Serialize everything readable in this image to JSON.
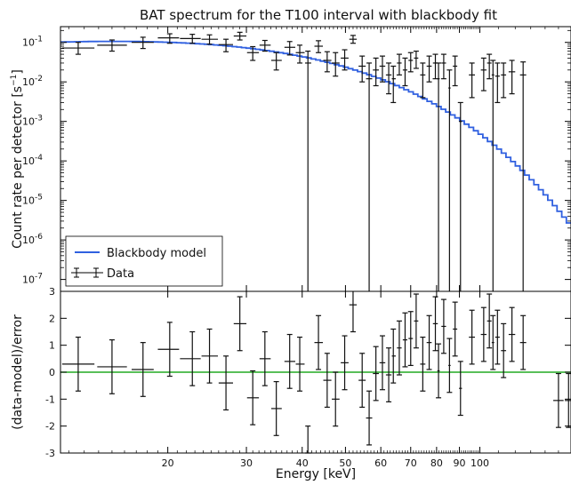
{
  "chart_data": {
    "type": "scatter",
    "title": "BAT spectrum for the T100 interval with blackbody fit",
    "xlabel": "Energy [keV]",
    "x_scale": "log",
    "xlim": [
      11.5,
      160
    ],
    "x_ticks": [
      {
        "value": 20,
        "label": "20"
      },
      {
        "value": 30,
        "label": "30"
      },
      {
        "value": 40,
        "label": "40"
      },
      {
        "value": 50,
        "label": "50"
      },
      {
        "value": 60,
        "label": "60"
      },
      {
        "value": 70,
        "label": "70"
      },
      {
        "value": 80,
        "label": "80"
      },
      {
        "value": 90,
        "label": "90"
      },
      {
        "value": 100,
        "label": "100"
      }
    ],
    "top_panel": {
      "ylabel": "Count rate per detector [s",
      "ylabel_sup": "−1",
      "ylabel_end": "]",
      "y_scale": "log",
      "ylim": [
        5e-08,
        0.25
      ],
      "y_ticks": [
        {
          "value": 1e-07,
          "base": "10",
          "exp": "-7"
        },
        {
          "value": 1e-06,
          "base": "10",
          "exp": "-6"
        },
        {
          "value": 1e-05,
          "base": "10",
          "exp": "-5"
        },
        {
          "value": 0.0001,
          "base": "10",
          "exp": "-4"
        },
        {
          "value": 0.001,
          "base": "10",
          "exp": "-3"
        },
        {
          "value": 0.01,
          "base": "10",
          "exp": "-2"
        },
        {
          "value": 0.1,
          "base": "10",
          "exp": "-1"
        }
      ],
      "legend": {
        "position": "bottom-left",
        "model_label": "Blackbody model",
        "data_label": "Data"
      },
      "model": {
        "name": "Blackbody model",
        "color": "#3060e0",
        "kT_keV": 9.5,
        "norm": 0.103
      },
      "data": [
        {
          "x": 12.6,
          "y": 0.072,
          "xlo": 11.6,
          "xhi": 13.7,
          "ylo": 0.05,
          "yhi": 0.1
        },
        {
          "x": 15.0,
          "y": 0.085,
          "xlo": 13.9,
          "xhi": 16.2,
          "ylo": 0.06,
          "yhi": 0.115
        },
        {
          "x": 17.6,
          "y": 0.1,
          "xlo": 16.6,
          "xhi": 18.6,
          "ylo": 0.07,
          "yhi": 0.135
        },
        {
          "x": 20.2,
          "y": 0.13,
          "xlo": 19.0,
          "xhi": 21.2,
          "ylo": 0.095,
          "yhi": 0.165
        },
        {
          "x": 22.7,
          "y": 0.125,
          "xlo": 21.3,
          "xhi": 23.7,
          "ylo": 0.095,
          "yhi": 0.16
        },
        {
          "x": 24.8,
          "y": 0.12,
          "xlo": 23.8,
          "xhi": 25.9,
          "ylo": 0.09,
          "yhi": 0.155
        },
        {
          "x": 27.0,
          "y": 0.088,
          "xlo": 26.0,
          "xhi": 28.0,
          "ylo": 0.058,
          "yhi": 0.12
        },
        {
          "x": 29.0,
          "y": 0.145,
          "xlo": 28.1,
          "xhi": 30.0,
          "ylo": 0.115,
          "yhi": 0.18
        },
        {
          "x": 31.0,
          "y": 0.055,
          "xlo": 30.1,
          "xhi": 32.0,
          "ylo": 0.035,
          "yhi": 0.078
        },
        {
          "x": 33.0,
          "y": 0.085,
          "xlo": 32.1,
          "xhi": 34.0,
          "ylo": 0.06,
          "yhi": 0.112
        },
        {
          "x": 35.0,
          "y": 0.035,
          "xlo": 34.1,
          "xhi": 36.0,
          "ylo": 0.02,
          "yhi": 0.055
        },
        {
          "x": 37.5,
          "y": 0.075,
          "xlo": 36.5,
          "xhi": 38.6,
          "ylo": 0.048,
          "yhi": 0.105
        },
        {
          "x": 39.5,
          "y": 0.055,
          "xlo": 38.7,
          "xhi": 40.5,
          "ylo": 0.03,
          "yhi": 0.085
        },
        {
          "x": 41.2,
          "y": 0.03,
          "xlo": 40.6,
          "xhi": 41.9,
          "ylo": 5e-08,
          "yhi": 0.06
        },
        {
          "x": 43.5,
          "y": 0.08,
          "xlo": 42.6,
          "xhi": 44.5,
          "ylo": 0.055,
          "yhi": 0.11
        },
        {
          "x": 45.5,
          "y": 0.035,
          "xlo": 44.6,
          "xhi": 46.5,
          "ylo": 0.018,
          "yhi": 0.058
        },
        {
          "x": 47.5,
          "y": 0.03,
          "xlo": 46.6,
          "xhi": 48.5,
          "ylo": 0.014,
          "yhi": 0.055
        },
        {
          "x": 49.8,
          "y": 0.04,
          "xlo": 48.8,
          "xhi": 50.8,
          "ylo": 0.02,
          "yhi": 0.065
        },
        {
          "x": 52.0,
          "y": 0.12,
          "xlo": 51.0,
          "xhi": 53.0,
          "ylo": 0.095,
          "yhi": 0.15
        },
        {
          "x": 54.5,
          "y": 0.025,
          "xlo": 53.5,
          "xhi": 55.5,
          "ylo": 0.01,
          "yhi": 0.045
        },
        {
          "x": 56.5,
          "y": 0.012,
          "xlo": 55.6,
          "xhi": 57.4,
          "ylo": 5e-08,
          "yhi": 0.03
        },
        {
          "x": 58.5,
          "y": 0.02,
          "xlo": 57.6,
          "xhi": 59.4,
          "ylo": 0.008,
          "yhi": 0.04
        },
        {
          "x": 60.5,
          "y": 0.025,
          "xlo": 59.6,
          "xhi": 61.4,
          "ylo": 0.01,
          "yhi": 0.045
        },
        {
          "x": 62.5,
          "y": 0.015,
          "xlo": 61.6,
          "xhi": 63.4,
          "ylo": 0.005,
          "yhi": 0.03
        },
        {
          "x": 64.0,
          "y": 0.012,
          "xlo": 63.5,
          "xhi": 64.8,
          "ylo": 0.003,
          "yhi": 0.025
        },
        {
          "x": 66.0,
          "y": 0.03,
          "xlo": 65.2,
          "xhi": 66.8,
          "ylo": 0.015,
          "yhi": 0.05
        },
        {
          "x": 68.0,
          "y": 0.02,
          "xlo": 67.2,
          "xhi": 68.8,
          "ylo": 0.008,
          "yhi": 0.04
        },
        {
          "x": 70.0,
          "y": 0.035,
          "xlo": 69.2,
          "xhi": 70.8,
          "ylo": 0.018,
          "yhi": 0.055
        },
        {
          "x": 72.0,
          "y": 0.04,
          "xlo": 71.2,
          "xhi": 72.8,
          "ylo": 0.022,
          "yhi": 0.06
        },
        {
          "x": 74.5,
          "y": 0.015,
          "xlo": 73.5,
          "xhi": 75.5,
          "ylo": 0.004,
          "yhi": 0.03
        },
        {
          "x": 77.0,
          "y": 0.025,
          "xlo": 76.0,
          "xhi": 78.0,
          "ylo": 0.01,
          "yhi": 0.045
        },
        {
          "x": 79.5,
          "y": 0.03,
          "xlo": 78.5,
          "xhi": 80.5,
          "ylo": 0.012,
          "yhi": 0.05
        },
        {
          "x": 80.8,
          "y": 0.012,
          "xlo": 80.3,
          "xhi": 81.3,
          "ylo": 5e-08,
          "yhi": 0.03
        },
        {
          "x": 83.0,
          "y": 0.03,
          "xlo": 82.0,
          "xhi": 84.0,
          "ylo": 0.012,
          "yhi": 0.05
        },
        {
          "x": 85.5,
          "y": 0.007,
          "xlo": 85.0,
          "xhi": 86.0,
          "ylo": 5e-08,
          "yhi": 0.02
        },
        {
          "x": 88.0,
          "y": 0.025,
          "xlo": 87.0,
          "xhi": 89.0,
          "ylo": 0.008,
          "yhi": 0.045
        },
        {
          "x": 90.5,
          "y": 0.001,
          "xlo": 89.8,
          "xhi": 91.2,
          "ylo": 5e-08,
          "yhi": 0.003
        },
        {
          "x": 96.0,
          "y": 0.015,
          "xlo": 94.5,
          "xhi": 97.5,
          "ylo": 0.004,
          "yhi": 0.03
        },
        {
          "x": 102.0,
          "y": 0.02,
          "xlo": 100.5,
          "xhi": 103.5,
          "ylo": 0.006,
          "yhi": 0.04
        },
        {
          "x": 105.0,
          "y": 0.03,
          "xlo": 103.8,
          "xhi": 106.2,
          "ylo": 0.012,
          "yhi": 0.05
        },
        {
          "x": 107.0,
          "y": 0.015,
          "xlo": 106.3,
          "xhi": 107.7,
          "ylo": 5e-08,
          "yhi": 0.035
        },
        {
          "x": 109.5,
          "y": 0.014,
          "xlo": 108.2,
          "xhi": 110.8,
          "ylo": 0.003,
          "yhi": 0.03
        },
        {
          "x": 113.0,
          "y": 0.015,
          "xlo": 111.5,
          "xhi": 114.5,
          "ylo": 0.004,
          "yhi": 0.03
        },
        {
          "x": 118.0,
          "y": 0.018,
          "xlo": 116.0,
          "xhi": 120.0,
          "ylo": 0.005,
          "yhi": 0.035
        },
        {
          "x": 125.0,
          "y": 0.015,
          "xlo": 123.0,
          "xhi": 127.0,
          "ylo": 5e-08,
          "yhi": 0.032
        }
      ]
    },
    "bottom_panel": {
      "ylabel": "(data-model)/error",
      "ylim": [
        -3,
        3
      ],
      "y_ticks": [
        -3,
        -2,
        -1,
        0,
        1,
        2,
        3
      ],
      "zero_line_color": "#22aa22",
      "data": [
        {
          "x": 12.6,
          "y": 0.3,
          "xlo": 11.6,
          "xhi": 13.7
        },
        {
          "x": 15.0,
          "y": 0.2,
          "xlo": 13.9,
          "xhi": 16.2
        },
        {
          "x": 17.6,
          "y": 0.1,
          "xlo": 16.6,
          "xhi": 18.6
        },
        {
          "x": 20.2,
          "y": 0.85,
          "xlo": 19.0,
          "xhi": 21.2
        },
        {
          "x": 22.7,
          "y": 0.5,
          "xlo": 21.3,
          "xhi": 23.7
        },
        {
          "x": 24.8,
          "y": 0.6,
          "xlo": 23.8,
          "xhi": 25.9
        },
        {
          "x": 27.0,
          "y": -0.4,
          "xlo": 26.0,
          "xhi": 28.0
        },
        {
          "x": 29.0,
          "y": 1.8,
          "xlo": 28.1,
          "xhi": 30.0
        },
        {
          "x": 31.0,
          "y": -0.95,
          "xlo": 30.1,
          "xhi": 32.0
        },
        {
          "x": 33.0,
          "y": 0.5,
          "xlo": 32.1,
          "xhi": 34.0
        },
        {
          "x": 35.0,
          "y": -1.35,
          "xlo": 34.1,
          "xhi": 36.0
        },
        {
          "x": 37.5,
          "y": 0.4,
          "xlo": 36.5,
          "xhi": 38.6
        },
        {
          "x": 39.5,
          "y": 0.3,
          "xlo": 38.7,
          "xhi": 40.5
        },
        {
          "x": 41.2,
          "y": -3.0,
          "xlo": 40.6,
          "xhi": 41.9
        },
        {
          "x": 43.5,
          "y": 1.1,
          "xlo": 42.6,
          "xhi": 44.5
        },
        {
          "x": 45.5,
          "y": -0.3,
          "xlo": 44.6,
          "xhi": 46.5
        },
        {
          "x": 47.5,
          "y": -1.0,
          "xlo": 46.6,
          "xhi": 48.5
        },
        {
          "x": 49.8,
          "y": 0.35,
          "xlo": 48.8,
          "xhi": 50.8
        },
        {
          "x": 52.0,
          "y": 2.5,
          "xlo": 51.0,
          "xhi": 53.0
        },
        {
          "x": 54.5,
          "y": -0.3,
          "xlo": 53.5,
          "xhi": 55.5
        },
        {
          "x": 56.5,
          "y": -1.7,
          "xlo": 55.6,
          "xhi": 57.4
        },
        {
          "x": 58.5,
          "y": -0.05,
          "xlo": 57.6,
          "xhi": 59.4
        },
        {
          "x": 60.5,
          "y": 0.35,
          "xlo": 59.6,
          "xhi": 61.4
        },
        {
          "x": 62.5,
          "y": -0.1,
          "xlo": 61.6,
          "xhi": 63.4
        },
        {
          "x": 64.0,
          "y": 0.6,
          "xlo": 63.5,
          "xhi": 64.8
        },
        {
          "x": 66.0,
          "y": 0.9,
          "xlo": 65.2,
          "xhi": 66.8
        },
        {
          "x": 68.0,
          "y": 1.2,
          "xlo": 67.2,
          "xhi": 68.8
        },
        {
          "x": 70.0,
          "y": 1.25,
          "xlo": 69.2,
          "xhi": 70.8
        },
        {
          "x": 72.0,
          "y": 1.9,
          "xlo": 71.2,
          "xhi": 72.8
        },
        {
          "x": 74.5,
          "y": 0.3,
          "xlo": 73.5,
          "xhi": 75.5
        },
        {
          "x": 77.0,
          "y": 1.1,
          "xlo": 76.0,
          "xhi": 78.0
        },
        {
          "x": 79.5,
          "y": 1.8,
          "xlo": 78.5,
          "xhi": 80.5
        },
        {
          "x": 80.8,
          "y": 0.05,
          "xlo": 80.3,
          "xhi": 81.3
        },
        {
          "x": 83.0,
          "y": 1.7,
          "xlo": 82.0,
          "xhi": 84.0
        },
        {
          "x": 85.5,
          "y": 0.25,
          "xlo": 85.0,
          "xhi": 86.0
        },
        {
          "x": 88.0,
          "y": 1.6,
          "xlo": 87.0,
          "xhi": 89.0
        },
        {
          "x": 90.5,
          "y": -0.6,
          "xlo": 89.8,
          "xhi": 91.2
        },
        {
          "x": 96.0,
          "y": 1.3,
          "xlo": 94.5,
          "xhi": 97.5
        },
        {
          "x": 102.0,
          "y": 1.4,
          "xlo": 100.5,
          "xhi": 103.5
        },
        {
          "x": 105.0,
          "y": 1.9,
          "xlo": 103.8,
          "xhi": 106.2
        },
        {
          "x": 107.0,
          "y": 1.1,
          "xlo": 106.3,
          "xhi": 107.7
        },
        {
          "x": 109.5,
          "y": 1.3,
          "xlo": 108.2,
          "xhi": 110.8
        },
        {
          "x": 113.0,
          "y": 0.8,
          "xlo": 111.5,
          "xhi": 114.5
        },
        {
          "x": 118.0,
          "y": 1.4,
          "xlo": 116.0,
          "xhi": 120.0
        },
        {
          "x": 125.0,
          "y": 1.1,
          "xlo": 123.0,
          "xhi": 127.0
        },
        {
          "x": 150.0,
          "y": -1.05,
          "xlo": 146.0,
          "xhi": 154.0
        },
        {
          "x": 158.0,
          "y": -1.05,
          "xlo": 155.0,
          "xhi": 161.0
        }
      ]
    }
  }
}
